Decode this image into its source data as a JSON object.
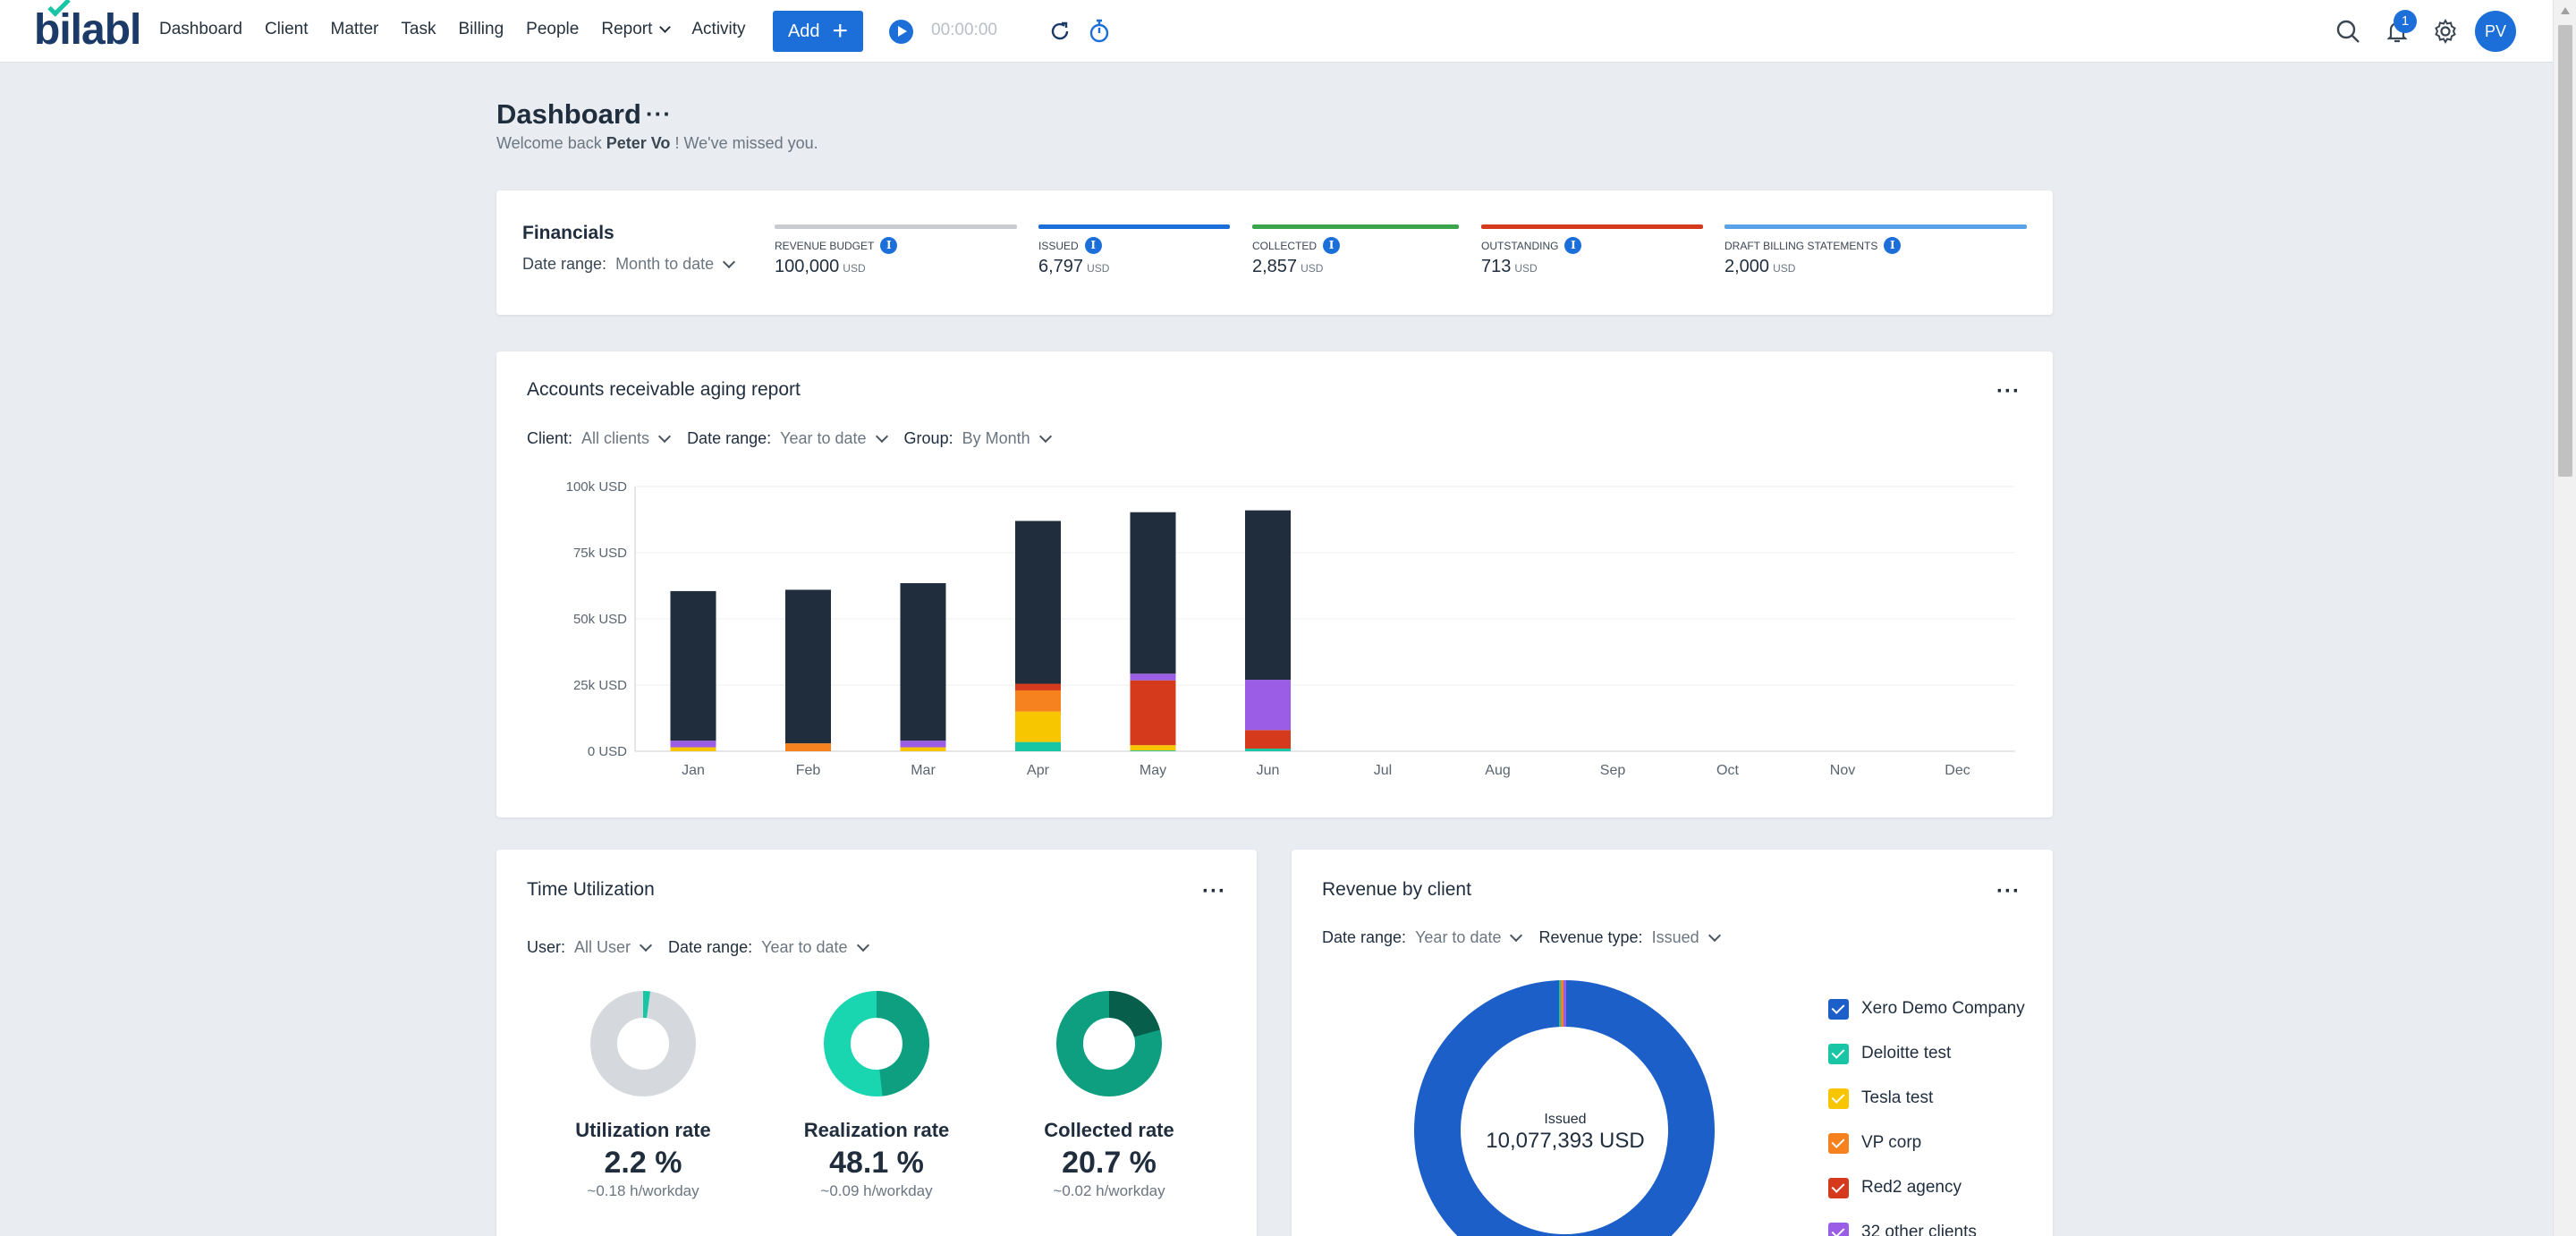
{
  "nav": {
    "logo": "bilabl",
    "items": [
      "Dashboard",
      "Client",
      "Matter",
      "Task",
      "Billing",
      "People",
      "Report",
      "Activity"
    ],
    "add_label": "Add",
    "timer": "00:00:00",
    "notification_count": "1",
    "user_initials": "PV"
  },
  "header": {
    "title": "Dashboard",
    "more": "···",
    "welcome_prefix": "Welcome back",
    "user_name": "Peter Vo",
    "welcome_suffix": "! We've missed you."
  },
  "financials": {
    "title": "Financials",
    "date_range_label": "Date range:",
    "date_range_value": "Month to date",
    "metrics": [
      {
        "label": "REVENUE BUDGET",
        "value": "100,000",
        "currency": "USD",
        "color": "#c8ccd0"
      },
      {
        "label": "ISSUED",
        "value": "6,797",
        "currency": "USD",
        "color": "#1c6fd9"
      },
      {
        "label": "COLLECTED",
        "value": "2,857",
        "currency": "USD",
        "color": "#3aa54b"
      },
      {
        "label": "OUTSTANDING",
        "value": "713",
        "currency": "USD",
        "color": "#d63a1c"
      },
      {
        "label": "DRAFT BILLING STATEMENTS",
        "value": "2,000",
        "currency": "USD",
        "color": "#5aa3e8"
      }
    ]
  },
  "aging": {
    "title": "Accounts receivable aging report",
    "more": "···",
    "client_label": "Client:",
    "client_value": "All clients",
    "date_label": "Date range:",
    "date_value": "Year to date",
    "group_label": "Group:",
    "group_value": "By Month"
  },
  "chart_data": {
    "type": "bar",
    "stacked": true,
    "title": "Accounts receivable aging report",
    "categories": [
      "Jan",
      "Feb",
      "Mar",
      "Apr",
      "May",
      "Jun",
      "Jul",
      "Aug",
      "Sep",
      "Oct",
      "Nov",
      "Dec"
    ],
    "yticks": [
      "100k USD",
      "75k USD",
      "50k USD",
      "25k USD",
      "0 USD"
    ],
    "ylim": [
      0,
      100000
    ],
    "series": [
      {
        "name": "Teal",
        "color": "#18c6a6",
        "values": [
          0,
          0,
          0,
          3500,
          300,
          1000,
          0,
          0,
          0,
          0,
          0,
          0
        ]
      },
      {
        "name": "Yellow",
        "color": "#f7c600",
        "values": [
          1500,
          0,
          1500,
          11500,
          2000,
          0,
          0,
          0,
          0,
          0,
          0,
          0
        ]
      },
      {
        "name": "Orange",
        "color": "#f5821f",
        "values": [
          0,
          3000,
          0,
          8000,
          0,
          0,
          0,
          0,
          0,
          0,
          0,
          0
        ]
      },
      {
        "name": "Red",
        "color": "#d63a1c",
        "values": [
          0,
          0,
          0,
          2500,
          24500,
          7000,
          0,
          0,
          0,
          0,
          0,
          0
        ]
      },
      {
        "name": "Purple",
        "color": "#9b5de5",
        "values": [
          2500,
          0,
          2500,
          0,
          2500,
          19000,
          0,
          0,
          0,
          0,
          0,
          0
        ]
      },
      {
        "name": "Navy",
        "color": "#1f2d3d",
        "values": [
          56500,
          58000,
          59500,
          61500,
          61000,
          64000,
          0,
          0,
          0,
          0,
          0,
          0
        ]
      }
    ]
  },
  "time_utilization": {
    "title": "Time Utilization",
    "more": "···",
    "user_label": "User:",
    "user_value": "All User",
    "date_label": "Date range:",
    "date_value": "Year to date",
    "donuts": [
      {
        "name": "Utilization rate",
        "value": "2.2 %",
        "sub": "~0.18 h/workday",
        "percent": 2.2,
        "track": "#d5d9dd",
        "fill": "#18c6a6"
      },
      {
        "name": "Realization rate",
        "value": "48.1 %",
        "sub": "~0.09 h/workday",
        "percent": 48.1,
        "track": "#1ad6b0",
        "fill": "#0e9e80"
      },
      {
        "name": "Collected rate",
        "value": "20.7 %",
        "sub": "~0.02 h/workday",
        "percent": 20.7,
        "track": "#0e9e80",
        "fill": "#075e4b"
      }
    ]
  },
  "revenue": {
    "title": "Revenue by client",
    "more": "···",
    "date_label": "Date range:",
    "date_value": "Year to date",
    "type_label": "Revenue type:",
    "type_value": "Issued",
    "center_label": "Issued",
    "center_value": "10,077,393 USD",
    "clients": [
      {
        "name": "Xero Demo Company",
        "color": "#1c5fc9"
      },
      {
        "name": "Deloitte test",
        "color": "#18c6a6"
      },
      {
        "name": "Tesla test",
        "color": "#f7c600"
      },
      {
        "name": "VP corp",
        "color": "#f5821f"
      },
      {
        "name": "Red2 agency",
        "color": "#d63a1c"
      },
      {
        "name": "32 other clients",
        "color": "#9b5de5"
      }
    ]
  }
}
